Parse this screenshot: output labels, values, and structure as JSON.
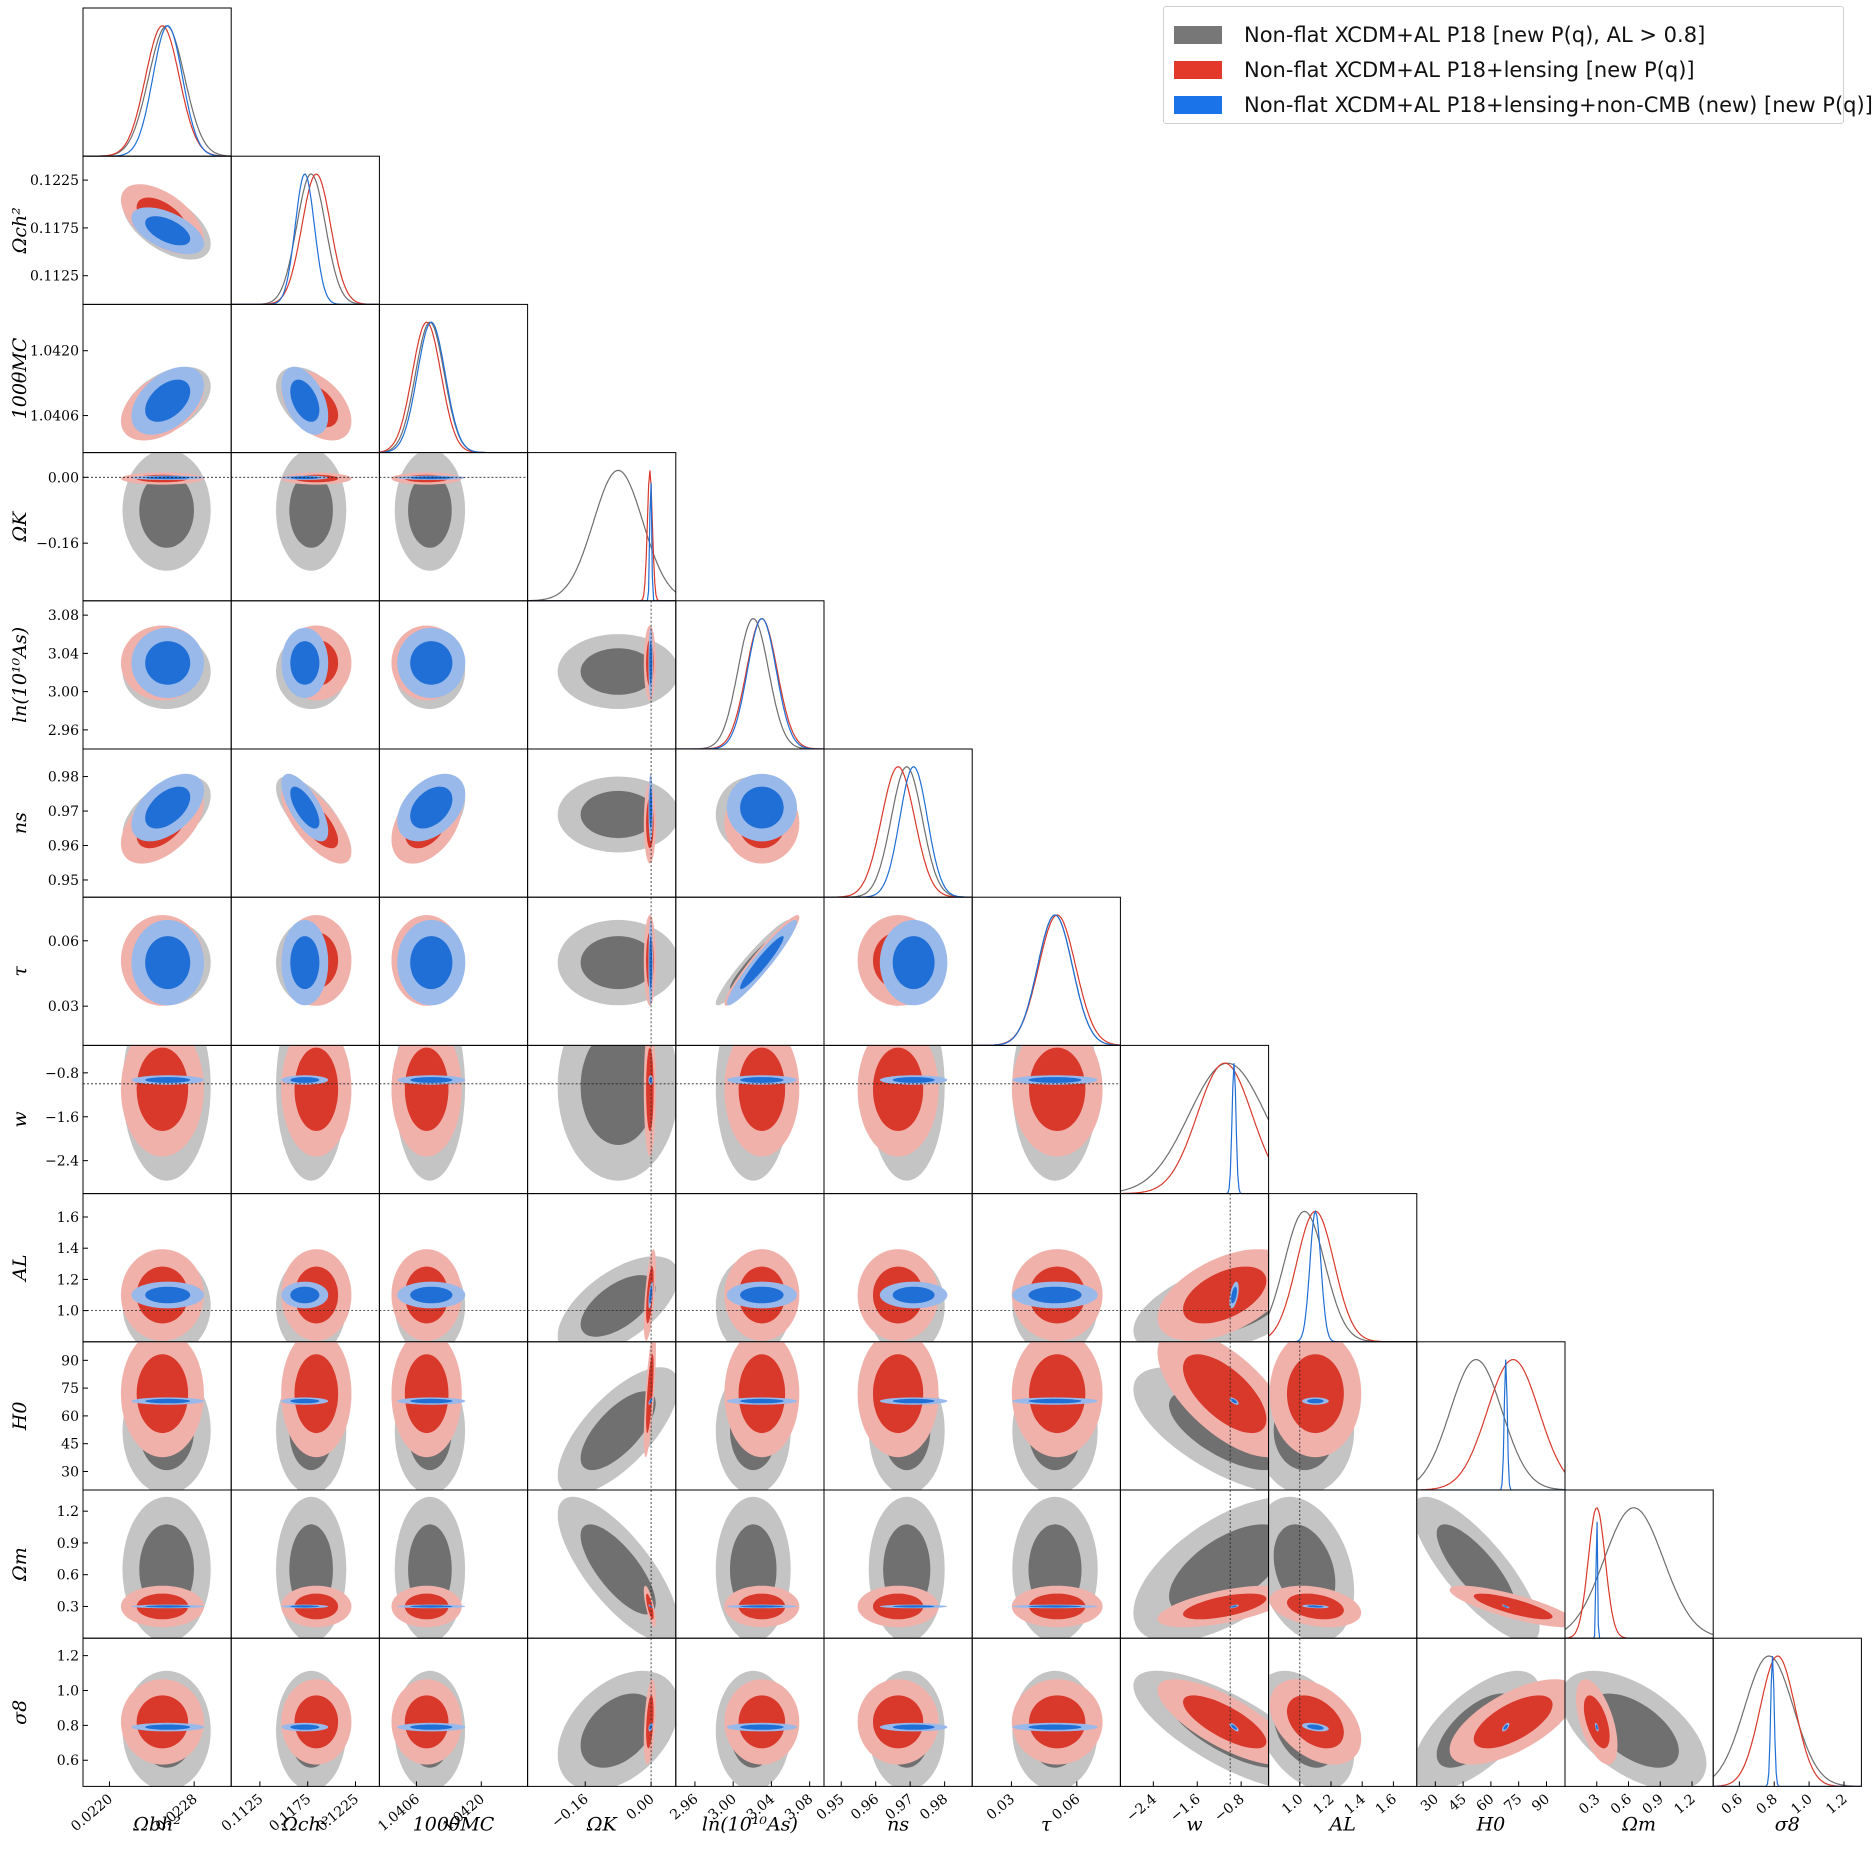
{
  "chart_data": {
    "type": "triangle-corner-plot",
    "parameters": [
      {
        "key": "ombh2",
        "label": "Ωbh²",
        "lim": [
          0.02175,
          0.02315
        ],
        "ticks": [
          0.022,
          0.0228
        ],
        "tick_labels": [
          "0.0220",
          "0.0228"
        ]
      },
      {
        "key": "omch2",
        "label": "Ωch²",
        "lim": [
          0.1095,
          0.125
        ],
        "ticks": [
          0.1125,
          0.1175,
          0.1225
        ],
        "tick_labels": [
          "0.1125",
          "0.1175",
          "0.1225"
        ]
      },
      {
        "key": "theta",
        "label": "100θMC",
        "lim": [
          1.0398,
          1.043
        ],
        "ticks": [
          1.0406,
          1.042
        ],
        "tick_labels": [
          "1.0406",
          "1.0420"
        ]
      },
      {
        "key": "omegak",
        "label": "ΩK",
        "lim": [
          -0.3,
          0.06
        ],
        "ticks": [
          -0.16,
          0.0
        ],
        "tick_labels": [
          "−0.16",
          "0.00"
        ],
        "ref": 0.0
      },
      {
        "key": "lnAs",
        "label": "ln(10¹⁰As)",
        "lim": [
          2.94,
          3.095
        ],
        "ticks": [
          2.96,
          3.0,
          3.04,
          3.08
        ],
        "tick_labels": [
          "2.96",
          "3.00",
          "3.04",
          "3.08"
        ]
      },
      {
        "key": "ns",
        "label": "ns",
        "lim": [
          0.945,
          0.988
        ],
        "ticks": [
          0.95,
          0.96,
          0.97,
          0.98
        ],
        "tick_labels": [
          "0.95",
          "0.96",
          "0.97",
          "0.98"
        ]
      },
      {
        "key": "tau",
        "label": "τ",
        "lim": [
          0.012,
          0.08
        ],
        "ticks": [
          0.03,
          0.06
        ],
        "tick_labels": [
          "0.03",
          "0.06"
        ]
      },
      {
        "key": "w",
        "label": "w",
        "lim": [
          -3.0,
          -0.3
        ],
        "ticks": [
          -2.4,
          -1.6,
          -0.8
        ],
        "tick_labels": [
          "−2.4",
          "−1.6",
          "−0.8"
        ],
        "ref": -1.0
      },
      {
        "key": "AL",
        "label": "AL",
        "lim": [
          0.8,
          1.75
        ],
        "ticks": [
          1.0,
          1.2,
          1.4,
          1.6
        ],
        "tick_labels": [
          "1.0",
          "1.2",
          "1.4",
          "1.6"
        ],
        "ref": 1.0
      },
      {
        "key": "H0",
        "label": "H0",
        "lim": [
          20,
          100
        ],
        "ticks": [
          30,
          45,
          60,
          75,
          90
        ],
        "tick_labels": [
          "30",
          "45",
          "60",
          "75",
          "90"
        ]
      },
      {
        "key": "omegam",
        "label": "Ωm",
        "lim": [
          0.0,
          1.4
        ],
        "ticks": [
          0.3,
          0.6,
          0.9,
          1.2
        ],
        "tick_labels": [
          "0.3",
          "0.6",
          "0.9",
          "1.2"
        ]
      },
      {
        "key": "sigma8",
        "label": "σ8",
        "lim": [
          0.45,
          1.3
        ],
        "ticks": [
          0.6,
          0.8,
          1.0,
          1.2
        ],
        "tick_labels": [
          "0.6",
          "0.8",
          "1.0",
          "1.2"
        ]
      }
    ],
    "series": [
      {
        "name": "Non-flat XCDM+AL P18 [new P(q), AL > 0.8]",
        "color": "#6e6e6e",
        "color_inner": "#707070",
        "color_outer": "#c4c4c4",
        "mean": [
          0.02254,
          0.11786,
          1.04089,
          -0.08,
          3.021,
          0.969,
          0.05,
          -1.05,
          1.03,
          52,
          0.65,
          0.77
        ],
        "sd": [
          0.00017,
          0.0015,
          0.00031,
          0.06,
          0.016,
          0.0045,
          0.008,
          0.7,
          0.13,
          14,
          0.28,
          0.14
        ]
      },
      {
        "name": "Non-flat XCDM+AL P18+lensing [new P(q)]",
        "color": "#d8392b",
        "color_inner": "#d8392b",
        "color_outer": "#f1b1ab",
        "mean": [
          0.0225,
          0.1184,
          1.04082,
          -0.003,
          3.03,
          0.9665,
          0.051,
          -1.1,
          1.1,
          72,
          0.3,
          0.82
        ],
        "sd": [
          0.00016,
          0.0015,
          0.00031,
          0.006,
          0.016,
          0.0048,
          0.0085,
          0.5,
          0.12,
          14,
          0.08,
          0.1
        ]
      },
      {
        "name": "Non-flat XCDM+AL P18+lensing+non-CMB (new) [new P(q)]",
        "color": "#1f6fd6",
        "color_inner": "#1f6fd6",
        "color_outer": "#99b9ea",
        "mean": [
          0.02255,
          0.1172,
          1.04092,
          -0.001,
          3.03,
          0.971,
          0.05,
          -0.93,
          1.1,
          68.0,
          0.3,
          0.79
        ],
        "sd": [
          0.00014,
          0.001,
          0.0003,
          0.0022,
          0.015,
          0.004,
          0.008,
          0.035,
          0.035,
          0.8,
          0.007,
          0.01
        ]
      }
    ],
    "legend_position": "top-right",
    "grid": false
  },
  "legend": {
    "items": [
      {
        "label": "Non-flat XCDM+AL P18 [new P(q), AL > 0.8]",
        "color": "#777777"
      },
      {
        "label": "Non-flat XCDM+AL P18+lensing [new P(q)]",
        "color": "#e2392a"
      },
      {
        "label": "Non-flat XCDM+AL P18+lensing+non-CMB (new) [new P(q)]",
        "color": "#1a73e8"
      }
    ]
  }
}
